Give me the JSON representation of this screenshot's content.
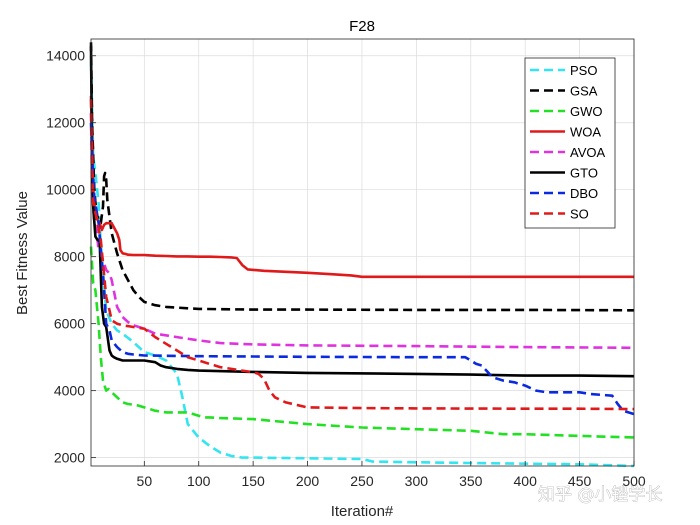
{
  "chart_data": {
    "type": "line",
    "title": "F28",
    "xlabel": "Iteration#",
    "ylabel": "Best Fitness Value",
    "xlim": [
      1,
      500
    ],
    "ylim": [
      1750,
      14500
    ],
    "xticks": [
      50,
      100,
      150,
      200,
      250,
      300,
      350,
      400,
      450,
      500
    ],
    "yticks": [
      2000,
      4000,
      6000,
      8000,
      10000,
      12000,
      14000
    ],
    "grid": true,
    "legend_position": "top-right",
    "series": [
      {
        "name": "PSO",
        "color": "#33e5f0",
        "style": "dashed",
        "x": [
          1,
          3,
          5,
          8,
          10,
          12,
          15,
          20,
          25,
          30,
          40,
          50,
          60,
          70,
          80,
          85,
          90,
          100,
          110,
          120,
          130,
          140,
          150,
          200,
          250,
          260,
          300,
          350,
          400,
          450,
          500
        ],
        "y": [
          13800,
          11000,
          10500,
          9600,
          8400,
          7500,
          6400,
          6000,
          5800,
          5700,
          5450,
          5150,
          5050,
          4900,
          4500,
          3800,
          3000,
          2600,
          2350,
          2150,
          2050,
          2000,
          2000,
          1980,
          1960,
          1880,
          1860,
          1840,
          1820,
          1800,
          1750
        ]
      },
      {
        "name": "GSA",
        "color": "#000000",
        "style": "dashed",
        "x": [
          1,
          2,
          4,
          6,
          8,
          10,
          12,
          13,
          14,
          15,
          16,
          18,
          20,
          25,
          30,
          35,
          40,
          45,
          50,
          60,
          70,
          80,
          90,
          100,
          150,
          200,
          300,
          400,
          500
        ],
        "y": [
          14400,
          12000,
          10000,
          9300,
          9100,
          9000,
          9500,
          10400,
          10500,
          10300,
          9700,
          9200,
          8700,
          8100,
          7600,
          7300,
          7000,
          6800,
          6650,
          6550,
          6500,
          6480,
          6460,
          6440,
          6420,
          6420,
          6410,
          6410,
          6400
        ]
      },
      {
        "name": "GWO",
        "color": "#22e022",
        "style": "dashed",
        "x": [
          1,
          3,
          5,
          8,
          10,
          12,
          14,
          15,
          17,
          20,
          25,
          30,
          35,
          40,
          45,
          50,
          60,
          70,
          80,
          90,
          100,
          105,
          110,
          120,
          150,
          200,
          250,
          300,
          350,
          380,
          400,
          450,
          500
        ],
        "y": [
          8300,
          7200,
          7000,
          6000,
          5000,
          4300,
          4100,
          4000,
          4050,
          3950,
          3800,
          3650,
          3600,
          3580,
          3550,
          3500,
          3400,
          3350,
          3350,
          3350,
          3250,
          3200,
          3200,
          3180,
          3150,
          3000,
          2900,
          2850,
          2800,
          2700,
          2700,
          2650,
          2600
        ]
      },
      {
        "name": "WOA",
        "color": "#e01a1a",
        "style": "solid",
        "x": [
          1,
          2,
          3,
          4,
          5,
          7,
          9,
          11,
          13,
          15,
          20,
          25,
          27,
          28,
          30,
          33,
          35,
          40,
          50,
          60,
          70,
          80,
          90,
          100,
          110,
          120,
          130,
          135,
          140,
          145,
          160,
          180,
          200,
          220,
          240,
          250,
          300,
          400,
          500
        ],
        "y": [
          12800,
          11500,
          10000,
          9600,
          9300,
          9100,
          9000,
          8800,
          8950,
          9000,
          9000,
          8700,
          8500,
          8200,
          8100,
          8080,
          8060,
          8050,
          8050,
          8030,
          8020,
          8010,
          8010,
          8000,
          8000,
          7990,
          7980,
          7960,
          7750,
          7620,
          7580,
          7550,
          7520,
          7480,
          7440,
          7400,
          7400,
          7400,
          7400
        ]
      },
      {
        "name": "AVOA",
        "color": "#e033e0",
        "style": "dashed",
        "x": [
          1,
          2,
          4,
          6,
          8,
          10,
          13,
          15,
          18,
          20,
          25,
          30,
          35,
          40,
          45,
          50,
          60,
          80,
          100,
          120,
          150,
          200,
          300,
          400,
          500
        ],
        "y": [
          12300,
          10000,
          9000,
          8800,
          8200,
          8100,
          7800,
          7600,
          7500,
          7300,
          6500,
          6200,
          6050,
          5950,
          5900,
          5850,
          5700,
          5600,
          5500,
          5420,
          5380,
          5350,
          5330,
          5300,
          5280
        ]
      },
      {
        "name": "GTO",
        "color": "#000000",
        "style": "solid",
        "x": [
          1,
          2,
          3,
          5,
          7,
          9,
          11,
          13,
          15,
          18,
          20,
          22,
          25,
          30,
          40,
          50,
          60,
          65,
          70,
          80,
          90,
          100,
          150,
          200,
          300,
          350,
          400,
          450,
          500
        ],
        "y": [
          14300,
          10500,
          9500,
          8600,
          8500,
          8450,
          6500,
          6000,
          5900,
          5200,
          5050,
          5000,
          4950,
          4900,
          4900,
          4900,
          4850,
          4750,
          4700,
          4650,
          4620,
          4600,
          4560,
          4530,
          4500,
          4480,
          4450,
          4450,
          4430
        ]
      },
      {
        "name": "DBO",
        "color": "#0a2ae0",
        "style": "dashed",
        "x": [
          1,
          2,
          4,
          6,
          8,
          10,
          12,
          15,
          18,
          20,
          25,
          30,
          35,
          40,
          50,
          100,
          150,
          200,
          300,
          345,
          350,
          355,
          360,
          370,
          380,
          390,
          400,
          410,
          420,
          450,
          460,
          480,
          485,
          490,
          500
        ],
        "y": [
          12000,
          11000,
          9800,
          9400,
          9000,
          8200,
          7500,
          6000,
          5800,
          5500,
          5300,
          5150,
          5100,
          5080,
          5050,
          5030,
          5020,
          5010,
          5000,
          5000,
          4900,
          4800,
          4750,
          4400,
          4300,
          4250,
          4150,
          4000,
          3950,
          3950,
          3900,
          3850,
          3600,
          3400,
          3300
        ]
      },
      {
        "name": "SO",
        "color": "#e01a1a",
        "style": "dashed",
        "x": [
          1,
          2,
          3,
          5,
          7,
          10,
          12,
          15,
          18,
          20,
          25,
          30,
          40,
          50,
          60,
          70,
          80,
          90,
          100,
          110,
          120,
          130,
          140,
          150,
          155,
          160,
          165,
          170,
          180,
          200,
          250,
          300,
          400,
          450,
          500
        ],
        "y": [
          12700,
          10500,
          9600,
          9300,
          9000,
          8500,
          7800,
          6800,
          6400,
          6100,
          6000,
          5950,
          5900,
          5850,
          5600,
          5400,
          5200,
          5000,
          4900,
          4800,
          4700,
          4650,
          4600,
          4550,
          4500,
          4350,
          4000,
          3800,
          3650,
          3500,
          3480,
          3470,
          3460,
          3460,
          3450
        ]
      }
    ]
  },
  "watermark": {
    "text": "知乎 @小锉学长"
  }
}
